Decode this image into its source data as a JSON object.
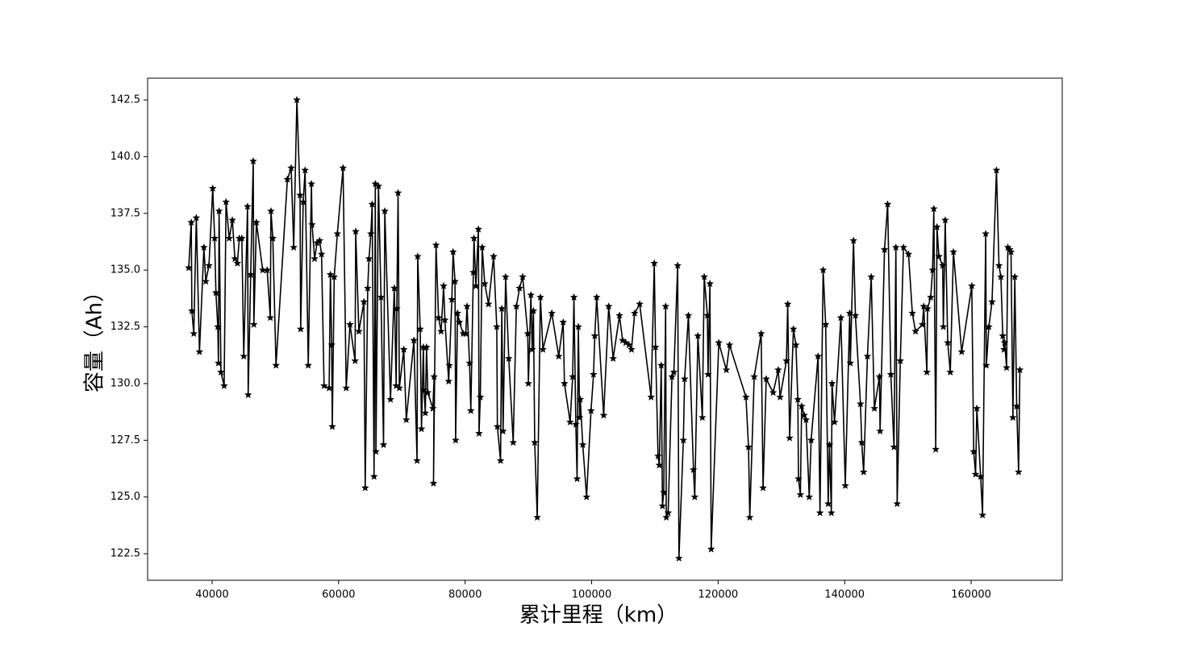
{
  "chart_data": {
    "type": "line",
    "xlabel": "累计里程（km）",
    "ylabel": "容量（Ah）",
    "color": "#000000",
    "marker": "star",
    "xlim": [
      29800,
      174400
    ],
    "ylim": [
      121.33,
      143.46
    ],
    "xticks": [
      40000,
      60000,
      80000,
      100000,
      120000,
      140000,
      160000
    ],
    "yticks": [
      122.5,
      {
        "value": 125,
        "label": "125.0"
      },
      127.5,
      {
        "value": 130,
        "label": "130.0"
      },
      132.5,
      {
        "value": 135,
        "label": "135.0"
      },
      137.5,
      {
        "value": 140,
        "label": "140.0"
      },
      142.5
    ],
    "x": [
      36300,
      36700,
      36800,
      37100,
      37500,
      38000,
      38700,
      39000,
      39500,
      40100,
      40400,
      40600,
      40900,
      41000,
      41100,
      41400,
      41900,
      42200,
      42700,
      43200,
      43600,
      44000,
      44300,
      44700,
      45000,
      45600,
      45700,
      46100,
      46500,
      46600,
      47000,
      48000,
      48700,
      49200,
      49300,
      49600,
      50100,
      51900,
      52500,
      52900,
      53400,
      53900,
      54000,
      54400,
      54700,
      55200,
      55700,
      55800,
      56200,
      56600,
      57000,
      57300,
      57700,
      58500,
      58700,
      58900,
      59000,
      59300,
      59800,
      60700,
      61200,
      61800,
      62600,
      62700,
      63200,
      64000,
      64200,
      64600,
      64800,
      65100,
      65300,
      65600,
      65800,
      65900,
      66300,
      66700,
      67100,
      67300,
      68200,
      68800,
      69100,
      69200,
      69400,
      69600,
      70300,
      70700,
      71900,
      72400,
      72500,
      72900,
      73100,
      73400,
      73500,
      73700,
      73900,
      74100,
      74900,
      75100,
      75000,
      75400,
      75800,
      76200,
      76600,
      76800,
      77400,
      77500,
      77900,
      78100,
      78400,
      78500,
      78800,
      79100,
      79700,
      80100,
      80300,
      80700,
      80900,
      81300,
      81400,
      81700,
      82100,
      82200,
      82400,
      82700,
      83100,
      83700,
      84500,
      85000,
      85100,
      85600,
      85800,
      86000,
      86400,
      86900,
      87600,
      88100,
      88600,
      89100,
      89900,
      90000,
      90400,
      90600,
      90800,
      91000,
      91400,
      91900,
      92300,
      93700,
      94800,
      95500,
      95700,
      96600,
      97000,
      97200,
      97500,
      97700,
      97900,
      98100,
      98200,
      98600,
      99200,
      99900,
      100300,
      100500,
      100800,
      101900,
      102700,
      103400,
      104400,
      104900,
      105400,
      105900,
      106300,
      106800,
      107600,
      109400,
      109900,
      110100,
      110500,
      110700,
      111000,
      111200,
      111400,
      111700,
      111800,
      112100,
      112700,
      113000,
      113600,
      113800,
      114500,
      114700,
      115300,
      116100,
      116300,
      116800,
      117500,
      117800,
      118300,
      118400,
      118700,
      118900,
      120100,
      121300,
      121800,
      124400,
      124800,
      125000,
      125700,
      126800,
      127100,
      127600,
      128700,
      129500,
      129800,
      130800,
      131000,
      131300,
      131900,
      132300,
      132600,
      132700,
      133000,
      133200,
      133600,
      133900,
      134400,
      134700,
      135800,
      136100,
      136600,
      137000,
      137400,
      137600,
      137900,
      138000,
      138400,
      139400,
      140100,
      140800,
      140900,
      141400,
      141700,
      142500,
      142700,
      143000,
      143600,
      144200,
      144700,
      145500,
      145600,
      146300,
      146800,
      147300,
      147800,
      148100,
      148300,
      148800,
      149300,
      150100,
      150700,
      151200,
      152300,
      152500,
      153000,
      153100,
      153600,
      153900,
      154100,
      154400,
      154600,
      154900,
      155500,
      155600,
      155900,
      156300,
      156700,
      157200,
      158500,
      160100,
      160400,
      160700,
      160900,
      161500,
      161800,
      162300,
      162400,
      162800,
      163300,
      164000,
      164400,
      164700,
      165000,
      165200,
      165300,
      165600,
      165800,
      166100,
      166300,
      166600,
      166900,
      167200,
      167500,
      167700
    ],
    "values": [
      135.1,
      137.1,
      133.2,
      132.2,
      137.3,
      131.4,
      136.0,
      134.5,
      135.2,
      138.6,
      136.4,
      134.0,
      132.5,
      130.9,
      137.6,
      130.5,
      129.9,
      138.0,
      136.4,
      137.2,
      135.5,
      135.3,
      136.4,
      136.4,
      131.2,
      137.8,
      129.5,
      134.8,
      139.8,
      132.6,
      137.1,
      135.0,
      135.0,
      132.9,
      137.6,
      136.4,
      130.8,
      139.0,
      139.5,
      136.0,
      142.5,
      138.3,
      132.4,
      138.0,
      139.4,
      130.8,
      138.8,
      137.0,
      135.5,
      136.2,
      136.3,
      135.7,
      129.9,
      129.8,
      134.8,
      131.7,
      128.1,
      134.7,
      136.6,
      139.5,
      129.8,
      132.6,
      131.0,
      136.7,
      132.3,
      133.6,
      125.4,
      134.2,
      135.5,
      136.6,
      137.9,
      125.9,
      138.8,
      127.0,
      138.7,
      133.8,
      127.3,
      137.6,
      129.3,
      134.2,
      129.9,
      133.3,
      138.4,
      129.8,
      131.5,
      128.4,
      131.9,
      126.6,
      135.6,
      132.4,
      128.0,
      131.6,
      129.7,
      128.7,
      131.6,
      129.6,
      128.9,
      130.3,
      125.6,
      136.1,
      132.9,
      132.3,
      134.3,
      132.8,
      130.1,
      130.8,
      133.7,
      135.8,
      134.5,
      127.5,
      133.1,
      132.7,
      132.2,
      132.2,
      133.4,
      130.9,
      128.8,
      134.9,
      136.4,
      134.3,
      136.8,
      127.8,
      129.4,
      136.0,
      134.4,
      133.5,
      135.6,
      132.5,
      128.1,
      126.6,
      133.3,
      127.9,
      134.7,
      131.1,
      127.4,
      133.4,
      134.2,
      134.7,
      132.2,
      130.0,
      133.9,
      131.5,
      133.2,
      127.4,
      124.1,
      133.8,
      131.5,
      133.1,
      131.2,
      132.7,
      130.0,
      128.3,
      130.3,
      133.8,
      128.2,
      125.8,
      132.5,
      128.5,
      129.3,
      127.3,
      125.0,
      128.8,
      130.4,
      132.1,
      133.8,
      128.6,
      133.4,
      131.1,
      133.0,
      131.9,
      131.8,
      131.7,
      131.5,
      133.1,
      133.5,
      129.4,
      135.3,
      131.6,
      126.8,
      126.4,
      130.8,
      124.6,
      125.2,
      133.4,
      124.1,
      124.3,
      130.3,
      130.5,
      135.2,
      122.3,
      127.5,
      130.2,
      133.0,
      126.2,
      125.0,
      132.1,
      128.5,
      134.7,
      133.0,
      130.4,
      134.4,
      122.7,
      131.8,
      130.6,
      131.7,
      129.4,
      127.2,
      124.1,
      130.3,
      132.2,
      125.4,
      130.2,
      129.6,
      130.6,
      129.4,
      131.0,
      133.5,
      127.6,
      132.4,
      131.7,
      129.3,
      125.8,
      125.1,
      129.0,
      128.6,
      128.4,
      125.0,
      127.5,
      131.2,
      124.3,
      135.0,
      132.6,
      124.7,
      127.3,
      124.3,
      130.0,
      128.3,
      132.9,
      125.5,
      133.1,
      130.9,
      136.3,
      133.0,
      129.1,
      127.4,
      126.1,
      131.2,
      134.7,
      128.9,
      130.3,
      127.9,
      135.9,
      137.9,
      130.4,
      127.2,
      136.0,
      124.7,
      131.0,
      136.0,
      135.7,
      133.1,
      132.3,
      132.6,
      133.4,
      130.5,
      133.3,
      133.8,
      135.0,
      137.7,
      127.1,
      136.9,
      135.6,
      135.2,
      132.5,
      137.2,
      131.8,
      130.5,
      135.8,
      131.4,
      134.3,
      127.0,
      126.0,
      128.9,
      125.9,
      124.2,
      136.6,
      130.8,
      132.5,
      133.6,
      139.4,
      135.2,
      134.7,
      132.1,
      131.5,
      131.8,
      130.7,
      136.0,
      135.9,
      135.8,
      128.5,
      134.7,
      129.0,
      126.1,
      130.6
    ]
  }
}
